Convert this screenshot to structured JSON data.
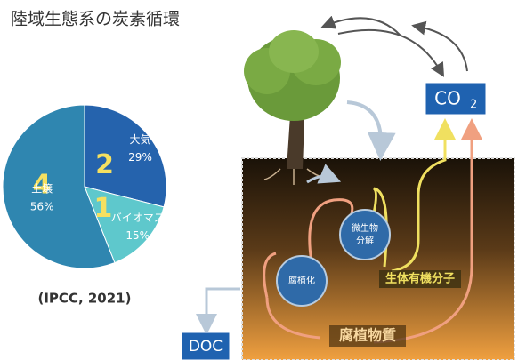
{
  "chart_data": {
    "type": "pie",
    "title": "陸域生態系の炭素循環",
    "categories": [
      "大気",
      "バイオマス",
      "土壌"
    ],
    "values": [
      29,
      15,
      56
    ],
    "value_labels": [
      "29%",
      "15%",
      "56%"
    ],
    "slice_numbers": [
      "2",
      "1",
      "4"
    ],
    "colors": [
      "#2563ad",
      "#5ec8cc",
      "#2f86b0"
    ],
    "source": "(IPCC, 2021)"
  },
  "diagram": {
    "co2": {
      "main": "CO",
      "sub": "2"
    },
    "doc": "DOC",
    "microbe": [
      "微生物",
      "分解"
    ],
    "humification": "腐植化",
    "biomolecules": "生体有機分子",
    "humus": "腐植物質"
  }
}
